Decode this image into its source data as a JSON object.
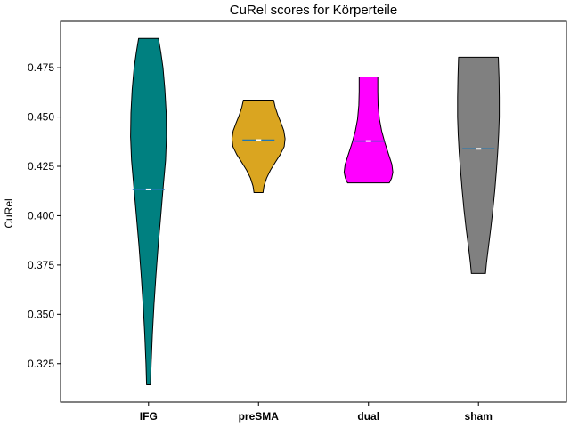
{
  "chart_data": {
    "type": "violin",
    "title": "CuRel scores for Körperteile",
    "xlabel": "",
    "ylabel": "CuRel",
    "ylim": [
      0.3055,
      0.4985
    ],
    "yticks": [
      0.325,
      0.35,
      0.375,
      0.4,
      0.425,
      0.45,
      0.475
    ],
    "ytick_labels": [
      "0.325",
      "0.350",
      "0.375",
      "0.400",
      "0.425",
      "0.450",
      "0.475"
    ],
    "categories": [
      "IFG",
      "preSMA",
      "dual",
      "sham"
    ],
    "grid": false,
    "legend": "none",
    "series": [
      {
        "category": "IFG",
        "color": "#008080",
        "min": 0.3143,
        "max": 0.4898,
        "median": 0.4133,
        "mean": 0.4133,
        "density_profile": [
          {
            "y": 0.3143,
            "w": 0.06
          },
          {
            "y": 0.325,
            "w": 0.08
          },
          {
            "y": 0.34,
            "w": 0.12
          },
          {
            "y": 0.355,
            "w": 0.17
          },
          {
            "y": 0.37,
            "w": 0.23
          },
          {
            "y": 0.385,
            "w": 0.3
          },
          {
            "y": 0.4,
            "w": 0.38
          },
          {
            "y": 0.415,
            "w": 0.46
          },
          {
            "y": 0.428,
            "w": 0.53
          },
          {
            "y": 0.44,
            "w": 0.56
          },
          {
            "y": 0.452,
            "w": 0.55
          },
          {
            "y": 0.464,
            "w": 0.51
          },
          {
            "y": 0.475,
            "w": 0.45
          },
          {
            "y": 0.483,
            "w": 0.38
          },
          {
            "y": 0.4898,
            "w": 0.31
          }
        ]
      },
      {
        "category": "preSMA",
        "color": "#DAA520",
        "min": 0.4117,
        "max": 0.4586,
        "median": 0.4383,
        "mean": 0.4383,
        "density_profile": [
          {
            "y": 0.4117,
            "w": 0.14
          },
          {
            "y": 0.415,
            "w": 0.17
          },
          {
            "y": 0.419,
            "w": 0.25
          },
          {
            "y": 0.423,
            "w": 0.37
          },
          {
            "y": 0.427,
            "w": 0.52
          },
          {
            "y": 0.431,
            "w": 0.68
          },
          {
            "y": 0.435,
            "w": 0.8
          },
          {
            "y": 0.439,
            "w": 0.83
          },
          {
            "y": 0.443,
            "w": 0.79
          },
          {
            "y": 0.447,
            "w": 0.7
          },
          {
            "y": 0.451,
            "w": 0.6
          },
          {
            "y": 0.455,
            "w": 0.52
          },
          {
            "y": 0.4586,
            "w": 0.47
          }
        ]
      },
      {
        "category": "dual",
        "color": "#FF00FF",
        "min": 0.4166,
        "max": 0.4703,
        "median": 0.4378,
        "mean": 0.4378,
        "density_profile": [
          {
            "y": 0.4166,
            "w": 0.65
          },
          {
            "y": 0.419,
            "w": 0.72
          },
          {
            "y": 0.422,
            "w": 0.76
          },
          {
            "y": 0.426,
            "w": 0.73
          },
          {
            "y": 0.431,
            "w": 0.63
          },
          {
            "y": 0.437,
            "w": 0.51
          },
          {
            "y": 0.443,
            "w": 0.41
          },
          {
            "y": 0.449,
            "w": 0.34
          },
          {
            "y": 0.456,
            "w": 0.3
          },
          {
            "y": 0.463,
            "w": 0.29
          },
          {
            "y": 0.4703,
            "w": 0.29
          }
        ]
      },
      {
        "category": "sham",
        "color": "#808080",
        "min": 0.3707,
        "max": 0.4803,
        "median": 0.4339,
        "mean": 0.4339,
        "density_profile": [
          {
            "y": 0.3707,
            "w": 0.22
          },
          {
            "y": 0.376,
            "w": 0.25
          },
          {
            "y": 0.384,
            "w": 0.31
          },
          {
            "y": 0.393,
            "w": 0.38
          },
          {
            "y": 0.403,
            "w": 0.45
          },
          {
            "y": 0.413,
            "w": 0.51
          },
          {
            "y": 0.423,
            "w": 0.56
          },
          {
            "y": 0.432,
            "w": 0.6
          },
          {
            "y": 0.441,
            "w": 0.63
          },
          {
            "y": 0.45,
            "w": 0.65
          },
          {
            "y": 0.46,
            "w": 0.65
          },
          {
            "y": 0.47,
            "w": 0.64
          },
          {
            "y": 0.4803,
            "w": 0.62
          }
        ]
      }
    ]
  }
}
